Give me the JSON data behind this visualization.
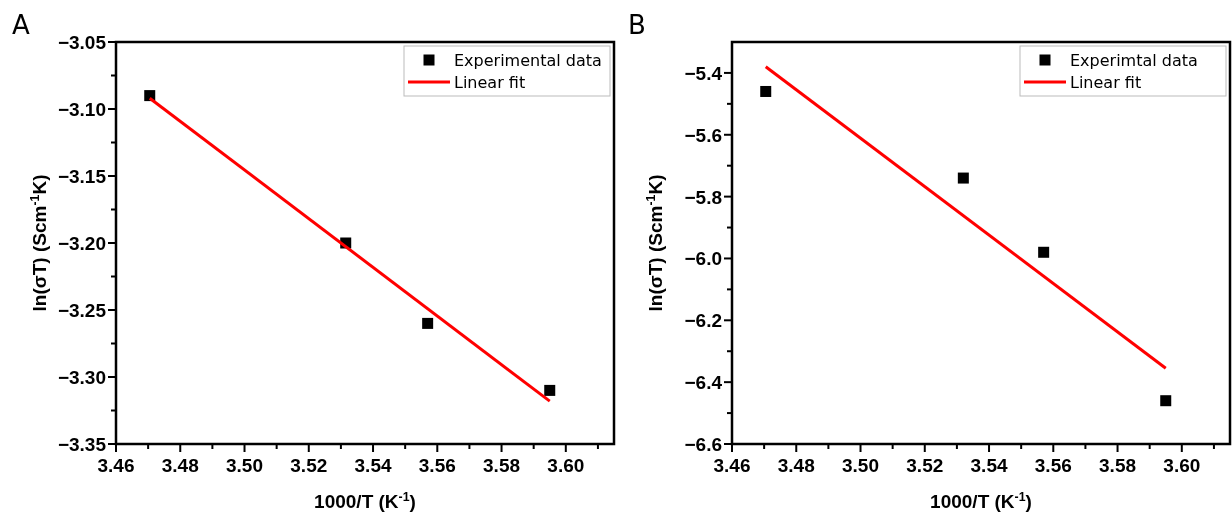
{
  "chart_data": [
    {
      "type": "scatter",
      "title": "A",
      "xlabel": "1000/T (K$^{-1}$)",
      "ylabel": "ln(σT) (Scm$^{-1}$K)",
      "xlim": [
        3.46,
        3.615
      ],
      "ylim": [
        -3.35,
        -3.05
      ],
      "xticks": [
        {
          "value": 3.46,
          "label": "3.46"
        },
        {
          "value": 3.47,
          "label": null
        },
        {
          "value": 3.48,
          "label": "3.48"
        },
        {
          "value": 3.49,
          "label": null
        },
        {
          "value": 3.5,
          "label": "3.50"
        },
        {
          "value": 3.51,
          "label": null
        },
        {
          "value": 3.52,
          "label": "3.52"
        },
        {
          "value": 3.53,
          "label": null
        },
        {
          "value": 3.54,
          "label": "3.54"
        },
        {
          "value": 3.55,
          "label": null
        },
        {
          "value": 3.56,
          "label": "3.56"
        },
        {
          "value": 3.57,
          "label": null
        },
        {
          "value": 3.58,
          "label": "3.58"
        },
        {
          "value": 3.59,
          "label": null
        },
        {
          "value": 3.6,
          "label": "3.60"
        },
        {
          "value": 3.61,
          "label": null
        }
      ],
      "yticks": [
        {
          "value": -3.35,
          "label": "−3.35"
        },
        {
          "value": -3.325,
          "label": null
        },
        {
          "value": -3.3,
          "label": "−3.30"
        },
        {
          "value": -3.275,
          "label": null
        },
        {
          "value": -3.25,
          "label": "−3.25"
        },
        {
          "value": -3.225,
          "label": null
        },
        {
          "value": -3.2,
          "label": "−3.20"
        },
        {
          "value": -3.175,
          "label": null
        },
        {
          "value": -3.15,
          "label": "−3.15"
        },
        {
          "value": -3.125,
          "label": null
        },
        {
          "value": -3.1,
          "label": "−3.10"
        },
        {
          "value": -3.075,
          "label": null
        },
        {
          "value": -3.05,
          "label": "−3.05"
        }
      ],
      "grid": false,
      "legend": "top right",
      "series": [
        {
          "name": "Experimental data",
          "color": "#000000",
          "marker": "square",
          "x": [
            3.4705,
            3.5315,
            3.557,
            3.595
          ],
          "values": [
            -3.09,
            -3.2,
            -3.26,
            -3.31
          ]
        },
        {
          "name": "Linear fit",
          "type": "line",
          "color": "#ff0000",
          "marker": "none",
          "line_style": "solid",
          "x": [
            3.4705,
            3.595
          ],
          "values": [
            -3.092,
            -3.318
          ]
        }
      ]
    },
    {
      "type": "scatter",
      "title": "B",
      "xlabel": "1000/T (K$^{-1}$)",
      "ylabel": "ln(σT) (Scm$^{-1}$K)",
      "xlim": [
        3.46,
        3.615
      ],
      "ylim": [
        -6.6,
        -5.3
      ],
      "xticks": [
        {
          "value": 3.46,
          "label": "3.46"
        },
        {
          "value": 3.47,
          "label": null
        },
        {
          "value": 3.48,
          "label": "3.48"
        },
        {
          "value": 3.49,
          "label": null
        },
        {
          "value": 3.5,
          "label": "3.50"
        },
        {
          "value": 3.51,
          "label": null
        },
        {
          "value": 3.52,
          "label": "3.52"
        },
        {
          "value": 3.53,
          "label": null
        },
        {
          "value": 3.54,
          "label": "3.54"
        },
        {
          "value": 3.55,
          "label": null
        },
        {
          "value": 3.56,
          "label": "3.56"
        },
        {
          "value": 3.57,
          "label": null
        },
        {
          "value": 3.58,
          "label": "3.58"
        },
        {
          "value": 3.59,
          "label": null
        },
        {
          "value": 3.6,
          "label": "3.60"
        },
        {
          "value": 3.61,
          "label": null
        }
      ],
      "yticks": [
        {
          "value": -6.6,
          "label": "−6.6"
        },
        {
          "value": -6.5,
          "label": null
        },
        {
          "value": -6.4,
          "label": "−6.4"
        },
        {
          "value": -6.3,
          "label": null
        },
        {
          "value": -6.2,
          "label": "−6.2"
        },
        {
          "value": -6.1,
          "label": null
        },
        {
          "value": -6.0,
          "label": "−6.0"
        },
        {
          "value": -5.9,
          "label": null
        },
        {
          "value": -5.8,
          "label": "−5.8"
        },
        {
          "value": -5.7,
          "label": null
        },
        {
          "value": -5.6,
          "label": "−5.6"
        },
        {
          "value": -5.5,
          "label": null
        },
        {
          "value": -5.4,
          "label": "−5.4"
        }
      ],
      "grid": false,
      "legend": "top right",
      "series": [
        {
          "name": "Experimtal data",
          "color": "#000000",
          "marker": "square",
          "x": [
            3.4705,
            3.532,
            3.557,
            3.595
          ],
          "values": [
            -5.46,
            -5.74,
            -5.98,
            -6.46
          ]
        },
        {
          "name": "Linear fit",
          "type": "line",
          "color": "#ff0000",
          "marker": "none",
          "line_style": "solid",
          "x": [
            3.4705,
            3.595
          ],
          "values": [
            -5.38,
            -6.355
          ]
        }
      ]
    }
  ]
}
